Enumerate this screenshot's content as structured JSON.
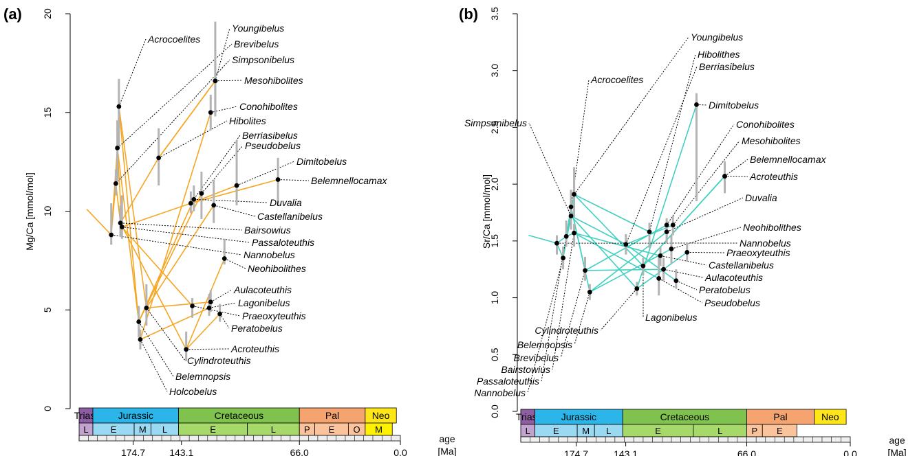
{
  "panels": [
    {
      "panel_label": "(a)",
      "ylabel": "Mg/Ca [mmol/mol]",
      "yticks": [
        "0",
        "5",
        "10",
        "15",
        "20"
      ],
      "color": "#f5a623"
    },
    {
      "panel_label": "(b)",
      "ylabel": "Sr/Ca [mmol/mol]",
      "yticks": [
        "0.0",
        "0.5",
        "1.0",
        "1.5",
        "2.0",
        "2.5",
        "3.0",
        "3.5"
      ],
      "color": "#40d0c0"
    }
  ],
  "timescale": {
    "periods": [
      "Trias.",
      "Jurassic",
      "Cretaceous",
      "Pal",
      "Neo"
    ],
    "period_colors": [
      "#8e5ea2",
      "#2cb5e8",
      "#7fc24e",
      "#f5a470",
      "#ffe619"
    ],
    "epochs_a": [
      "L",
      "E",
      "M",
      "L",
      "E",
      "L",
      "P",
      "E",
      "O",
      "M"
    ],
    "epochs_b": [
      "L",
      "E",
      "M",
      "L",
      "E",
      "L",
      "P",
      "E"
    ],
    "age_ticks": [
      "174.7",
      "143.1",
      "66.0",
      "0.0"
    ],
    "age_label": [
      "age",
      "[Ma]"
    ]
  },
  "chart_data": [
    {
      "type": "scatter",
      "title": "(a)",
      "ylabel": "Mg/Ca [mmol/mol]",
      "xlabel": "age [Ma]",
      "xlim": [
        210,
        0
      ],
      "ylim": [
        0,
        20
      ],
      "series": [
        {
          "name": "Acrocoelites",
          "age": 184,
          "value": 15.3,
          "err": [
            13.2,
            16.7
          ]
        },
        {
          "name": "Youngibelus",
          "age": 121,
          "value": 16.6,
          "err": [
            14.8,
            19.6
          ]
        },
        {
          "name": "Brevibelus",
          "age": 185,
          "value": 13.2,
          "err": [
            11.5,
            14.6
          ]
        },
        {
          "name": "Simpsonibelus",
          "age": 186,
          "value": 11.4,
          "err": [
            10.8,
            12.1
          ]
        },
        {
          "name": "Mesohibolites",
          "age": 121,
          "value": 16.6,
          "err": [
            15.2,
            17.5
          ]
        },
        {
          "name": "Conohibolites",
          "age": 124,
          "value": 15.0,
          "err": [
            14.1,
            15.9
          ]
        },
        {
          "name": "Hibolites",
          "age": 158,
          "value": 12.7,
          "err": [
            11.3,
            14.2
          ]
        },
        {
          "name": "Berriasibelus",
          "age": 137,
          "value": 10.4,
          "err": [
            9.9,
            11.0
          ]
        },
        {
          "name": "Pseudobelus",
          "age": 130,
          "value": 10.9,
          "err": [
            9.6,
            12.0
          ]
        },
        {
          "name": "Dimitobelus",
          "age": 107,
          "value": 11.3,
          "err": [
            10.3,
            13.6
          ]
        },
        {
          "name": "Belemnellocamax",
          "age": 80,
          "value": 11.6,
          "err": [
            10.3,
            12.7
          ]
        },
        {
          "name": "Duvalia",
          "age": 135,
          "value": 10.6,
          "err": [
            10.0,
            11.3
          ]
        },
        {
          "name": "Castellanibelus",
          "age": 122,
          "value": 10.3,
          "err": [
            9.4,
            11.6
          ]
        },
        {
          "name": "Bairsowius",
          "age": 183,
          "value": 9.4,
          "err": [
            8.7,
            10.3
          ]
        },
        {
          "name": "Passaloteuthis",
          "age": 182,
          "value": 9.2,
          "err": [
            8.6,
            10.8
          ]
        },
        {
          "name": "Nannobelus",
          "age": 189,
          "value": 8.8,
          "err": [
            8.3,
            10.4
          ]
        },
        {
          "name": "Neohibolithes",
          "age": 115,
          "value": 7.6,
          "err": [
            7.3,
            8.6
          ]
        },
        {
          "name": "Aulacoteuthis",
          "age": 124,
          "value": 5.4,
          "err": [
            4.9,
            6.0
          ]
        },
        {
          "name": "Lagonibelus",
          "age": 125,
          "value": 5.1,
          "err": [
            4.7,
            5.8
          ]
        },
        {
          "name": "Praeoxyteuthis",
          "age": 136,
          "value": 5.2,
          "err": [
            4.6,
            5.6
          ]
        },
        {
          "name": "Peratobelus",
          "age": 118,
          "value": 4.8,
          "err": [
            4.4,
            5.3
          ]
        },
        {
          "name": "Acroteuthis",
          "age": 140,
          "value": 3.0,
          "err": [
            2.4,
            3.9
          ]
        },
        {
          "name": "Cylindroteuthis",
          "age": 166,
          "value": 5.1,
          "err": [
            4.2,
            6.3
          ]
        },
        {
          "name": "Belemnopsis",
          "age": 171,
          "value": 4.4,
          "err": [
            3.6,
            5.2
          ]
        },
        {
          "name": "Holcobelus",
          "age": 170,
          "value": 3.5,
          "err": [
            3.0,
            4.0
          ]
        }
      ]
    },
    {
      "type": "scatter",
      "title": "(b)",
      "ylabel": "Sr/Ca [mmol/mol]",
      "xlabel": "age [Ma]",
      "xlim": [
        210,
        0
      ],
      "ylim": [
        0,
        3.5
      ],
      "series": [
        {
          "name": "Youngibelus",
          "age": 176,
          "value": 1.91,
          "err": [
            1.71,
            2.15
          ]
        },
        {
          "name": "Hibolithes",
          "age": 128,
          "value": 1.58,
          "err": [
            1.44,
            1.66
          ]
        },
        {
          "name": "Berriasibelus",
          "age": 143,
          "value": 1.47,
          "err": [
            1.38,
            1.56
          ]
        },
        {
          "name": "Acrocoelites",
          "age": 178,
          "value": 1.8,
          "err": [
            1.65,
            1.95
          ]
        },
        {
          "name": "Dimitobelus",
          "age": 98,
          "value": 2.7,
          "err": [
            1.85,
            2.8
          ]
        },
        {
          "name": "Simpsonibelus",
          "age": 178,
          "value": 1.72,
          "err": [
            1.6,
            1.85
          ]
        },
        {
          "name": "Conohibolites",
          "age": 117,
          "value": 1.64,
          "err": [
            1.5,
            1.7
          ]
        },
        {
          "name": "Mesohibolites",
          "age": 113,
          "value": 1.64,
          "err": [
            1.55,
            1.72
          ]
        },
        {
          "name": "Belemnellocamax",
          "age": 80,
          "value": 2.07,
          "err": [
            1.92,
            2.2
          ]
        },
        {
          "name": "Acroteuthis",
          "age": 80,
          "value": 2.07,
          "err": [
            1.96,
            2.16
          ]
        },
        {
          "name": "Duvalia",
          "age": 117,
          "value": 1.58,
          "err": [
            1.48,
            1.66
          ]
        },
        {
          "name": "Neohibolithes",
          "age": 114,
          "value": 1.43,
          "err": [
            1.3,
            1.55
          ]
        },
        {
          "name": "Nannobelus",
          "age": 187,
          "value": 1.48,
          "err": [
            1.38,
            1.55
          ]
        },
        {
          "name": "Praeoxyteuthis",
          "age": 104,
          "value": 1.4,
          "err": [
            1.32,
            1.48
          ]
        },
        {
          "name": "Castellanibelus",
          "age": 121,
          "value": 1.37,
          "err": [
            1.28,
            1.45
          ]
        },
        {
          "name": "Aulacoteuthis",
          "age": 119,
          "value": 1.25,
          "err": [
            1.15,
            1.35
          ]
        },
        {
          "name": "Peratobelus",
          "age": 111,
          "value": 1.15,
          "err": [
            1.08,
            1.25
          ]
        },
        {
          "name": "Pseudobelus",
          "age": 122,
          "value": 1.17,
          "err": [
            1.02,
            1.38
          ]
        },
        {
          "name": "Lagonibelus",
          "age": 132,
          "value": 1.28,
          "err": [
            1.2,
            1.35
          ]
        },
        {
          "name": "Cylindroteuthis",
          "age": 136,
          "value": 1.08,
          "err": [
            1.02,
            1.14
          ]
        },
        {
          "name": "Belemnopsis",
          "age": 166,
          "value": 1.05,
          "err": [
            0.98,
            1.12
          ]
        },
        {
          "name": "Brevibelus",
          "age": 169,
          "value": 1.24,
          "err": [
            1.15,
            1.36
          ]
        },
        {
          "name": "Bairstowius",
          "age": 176,
          "value": 1.57,
          "err": [
            1.45,
            1.65
          ]
        },
        {
          "name": "Passaloteuthis",
          "age": 181,
          "value": 1.54,
          "err": [
            1.45,
            1.68
          ]
        },
        {
          "name": "Nannobelus",
          "age": 183,
          "value": 1.35,
          "err": [
            1.25,
            1.45
          ]
        }
      ]
    }
  ]
}
